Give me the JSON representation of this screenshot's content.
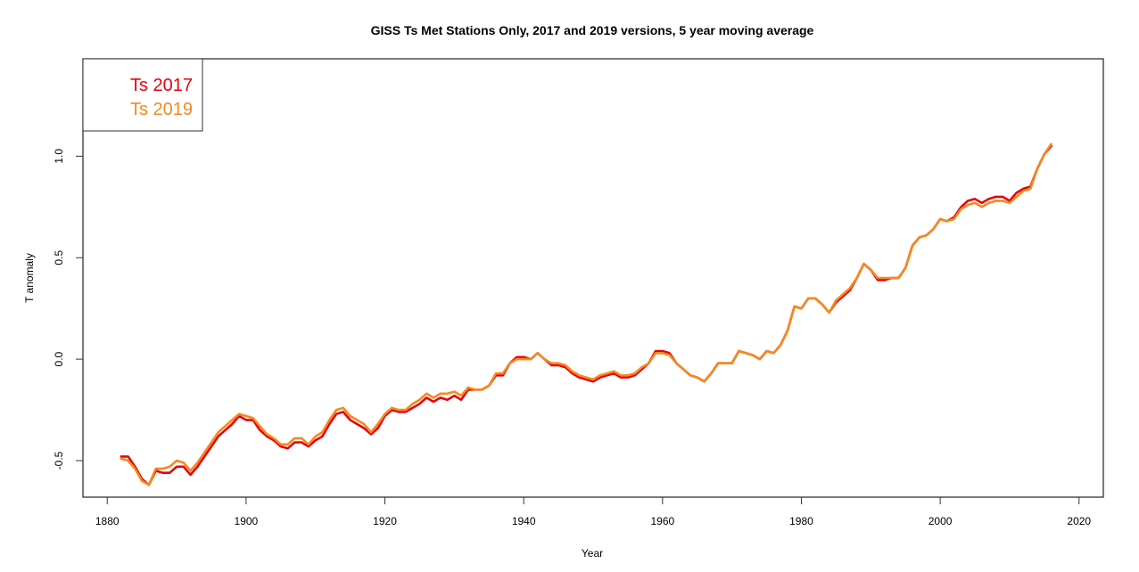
{
  "chart_data": {
    "type": "line",
    "title": "GISS Ts Met Stations Only, 2017 and 2019 versions, 5 year moving average",
    "xlabel": "Year",
    "ylabel": "T anomaly",
    "xlim": [
      1876.5,
      2023.5
    ],
    "ylim": [
      -0.68,
      1.48
    ],
    "xticks": [
      1880,
      1900,
      1920,
      1940,
      1960,
      1980,
      2000,
      2020
    ],
    "xtick_labels": [
      "1880",
      "1900",
      "1920",
      "1940",
      "1960",
      "1980",
      "2000",
      "2020"
    ],
    "yticks": [
      -0.5,
      0.0,
      0.5,
      1.0
    ],
    "ytick_labels": [
      "-0.5",
      "0.0",
      "0.5",
      "1.0"
    ],
    "grid": false,
    "legend": {
      "placement": "top-left",
      "entries": [
        {
          "label": "Ts 2017",
          "color": "#e8000b"
        },
        {
          "label": "Ts 2019",
          "color": "#f5891f"
        }
      ]
    },
    "x": [
      1882,
      1883,
      1884,
      1885,
      1886,
      1887,
      1888,
      1889,
      1890,
      1891,
      1892,
      1893,
      1894,
      1895,
      1896,
      1897,
      1898,
      1899,
      1900,
      1901,
      1902,
      1903,
      1904,
      1905,
      1906,
      1907,
      1908,
      1909,
      1910,
      1911,
      1912,
      1913,
      1914,
      1915,
      1916,
      1917,
      1918,
      1919,
      1920,
      1921,
      1922,
      1923,
      1924,
      1925,
      1926,
      1927,
      1928,
      1929,
      1930,
      1931,
      1932,
      1933,
      1934,
      1935,
      1936,
      1937,
      1938,
      1939,
      1940,
      1941,
      1942,
      1943,
      1944,
      1945,
      1946,
      1947,
      1948,
      1949,
      1950,
      1951,
      1952,
      1953,
      1954,
      1955,
      1956,
      1957,
      1958,
      1959,
      1960,
      1961,
      1962,
      1963,
      1964,
      1965,
      1966,
      1967,
      1968,
      1969,
      1970,
      1971,
      1972,
      1973,
      1974,
      1975,
      1976,
      1977,
      1978,
      1979,
      1980,
      1981,
      1982,
      1983,
      1984,
      1985,
      1986,
      1987,
      1988,
      1989,
      1990,
      1991,
      1992,
      1993,
      1994,
      1995,
      1996,
      1997,
      1998,
      1999,
      2000,
      2001,
      2002,
      2003,
      2004,
      2005,
      2006,
      2007,
      2008,
      2009,
      2010,
      2011,
      2012,
      2013,
      2014,
      2015,
      2016
    ],
    "series": [
      {
        "name": "Ts 2017",
        "color": "#e8000b",
        "values": [
          -0.48,
          -0.48,
          -0.53,
          -0.59,
          -0.62,
          -0.55,
          -0.56,
          -0.56,
          -0.53,
          -0.53,
          -0.57,
          -0.53,
          -0.48,
          -0.43,
          -0.38,
          -0.35,
          -0.32,
          -0.28,
          -0.3,
          -0.3,
          -0.35,
          -0.38,
          -0.4,
          -0.43,
          -0.44,
          -0.41,
          -0.41,
          -0.43,
          -0.4,
          -0.38,
          -0.32,
          -0.27,
          -0.26,
          -0.3,
          -0.32,
          -0.34,
          -0.37,
          -0.34,
          -0.28,
          -0.25,
          -0.26,
          -0.26,
          -0.24,
          -0.22,
          -0.19,
          -0.21,
          -0.19,
          -0.2,
          -0.18,
          -0.2,
          -0.15,
          -0.15,
          -0.15,
          -0.13,
          -0.08,
          -0.08,
          -0.02,
          0.01,
          0.01,
          0.0,
          0.03,
          0.0,
          -0.03,
          -0.03,
          -0.04,
          -0.07,
          -0.09,
          -0.1,
          -0.11,
          -0.09,
          -0.08,
          -0.07,
          -0.09,
          -0.09,
          -0.08,
          -0.05,
          -0.02,
          0.04,
          0.04,
          0.03,
          -0.02,
          -0.05,
          -0.08,
          -0.09,
          -0.11,
          -0.07,
          -0.02,
          -0.02,
          -0.02,
          0.04,
          0.03,
          0.02,
          0.0,
          0.04,
          0.03,
          0.07,
          0.14,
          0.26,
          0.25,
          0.3,
          0.3,
          0.27,
          0.23,
          0.28,
          0.31,
          0.34,
          0.4,
          0.47,
          0.44,
          0.39,
          0.39,
          0.4,
          0.4,
          0.45,
          0.56,
          0.6,
          0.61,
          0.64,
          0.69,
          0.68,
          0.7,
          0.75,
          0.78,
          0.79,
          0.77,
          0.79,
          0.8,
          0.8,
          0.78,
          0.82,
          0.84,
          0.85,
          0.94,
          1.01,
          1.05
        ]
      },
      {
        "name": "Ts 2019",
        "color": "#f5891f",
        "values": [
          -0.49,
          -0.5,
          -0.54,
          -0.6,
          -0.62,
          -0.54,
          -0.54,
          -0.53,
          -0.5,
          -0.51,
          -0.55,
          -0.51,
          -0.46,
          -0.41,
          -0.36,
          -0.33,
          -0.3,
          -0.27,
          -0.28,
          -0.29,
          -0.33,
          -0.37,
          -0.39,
          -0.42,
          -0.42,
          -0.39,
          -0.39,
          -0.42,
          -0.38,
          -0.36,
          -0.3,
          -0.25,
          -0.24,
          -0.28,
          -0.3,
          -0.32,
          -0.36,
          -0.32,
          -0.27,
          -0.24,
          -0.25,
          -0.25,
          -0.22,
          -0.2,
          -0.17,
          -0.19,
          -0.17,
          -0.17,
          -0.16,
          -0.18,
          -0.14,
          -0.15,
          -0.15,
          -0.13,
          -0.07,
          -0.07,
          -0.02,
          0.0,
          0.0,
          0.0,
          0.03,
          0.0,
          -0.02,
          -0.02,
          -0.03,
          -0.06,
          -0.08,
          -0.09,
          -0.1,
          -0.08,
          -0.07,
          -0.06,
          -0.08,
          -0.08,
          -0.07,
          -0.04,
          -0.02,
          0.03,
          0.03,
          0.02,
          -0.02,
          -0.05,
          -0.08,
          -0.09,
          -0.11,
          -0.07,
          -0.02,
          -0.02,
          -0.02,
          0.04,
          0.03,
          0.02,
          0.0,
          0.04,
          0.03,
          0.07,
          0.14,
          0.26,
          0.25,
          0.3,
          0.3,
          0.27,
          0.23,
          0.29,
          0.32,
          0.35,
          0.4,
          0.47,
          0.44,
          0.4,
          0.4,
          0.4,
          0.4,
          0.45,
          0.56,
          0.6,
          0.61,
          0.64,
          0.69,
          0.68,
          0.69,
          0.74,
          0.76,
          0.77,
          0.75,
          0.77,
          0.78,
          0.78,
          0.77,
          0.8,
          0.83,
          0.84,
          0.94,
          1.01,
          1.06
        ]
      }
    ]
  }
}
